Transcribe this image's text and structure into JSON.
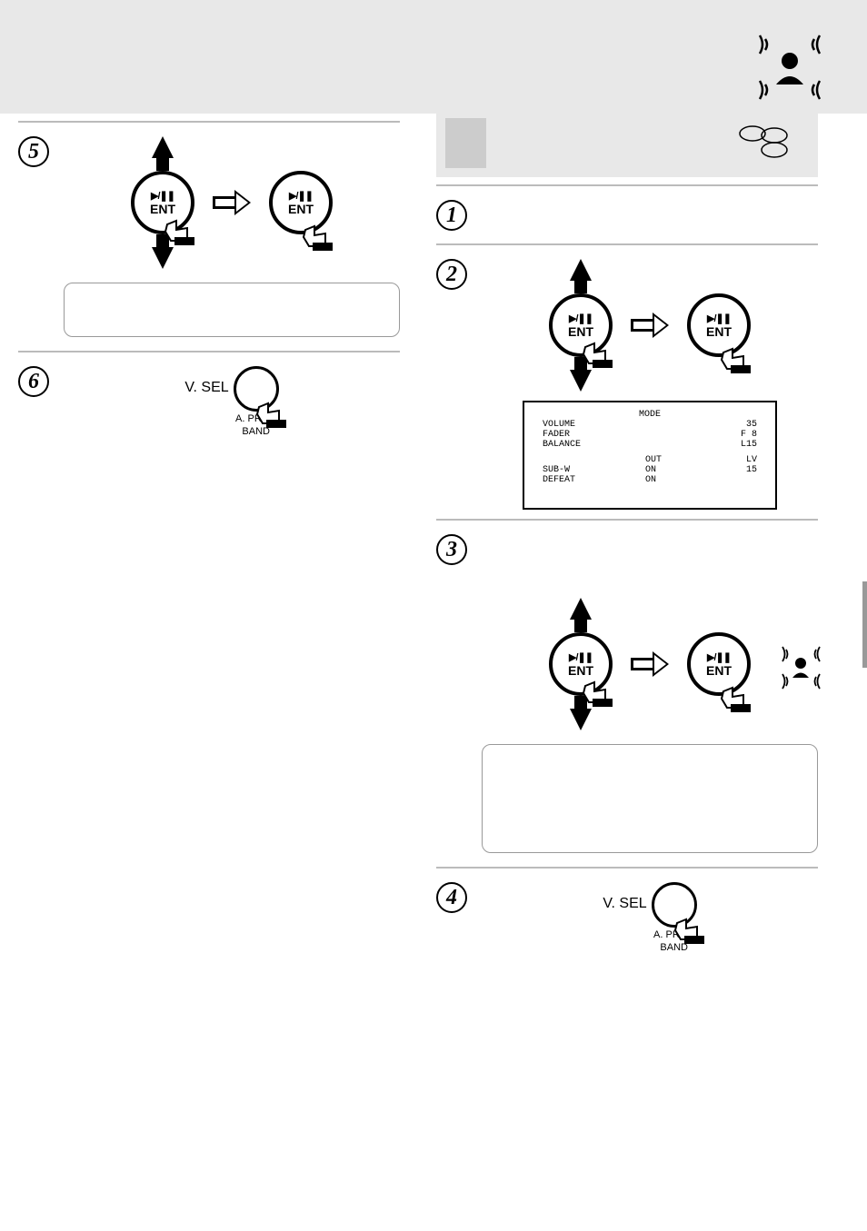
{
  "knob": {
    "label": "ENT",
    "play_symbol": "▶/❚❚"
  },
  "vsel": {
    "label": "V. SEL",
    "sub1": "A. PROC",
    "sub2": "BAND"
  },
  "screen": {
    "header": "MODE",
    "rows": [
      {
        "label": "VOLUME",
        "mid": "",
        "val": "35"
      },
      {
        "label": "FADER",
        "mid": "",
        "val": "F 8"
      },
      {
        "label": "BALANCE",
        "mid": "",
        "val": "L15"
      }
    ],
    "sub_header": {
      "c1": "",
      "c2": "OUT",
      "c3": "LV"
    },
    "sub_rows": [
      {
        "label": "SUB-W",
        "mid": "ON",
        "val": "15"
      },
      {
        "label": "DEFEAT",
        "mid": "ON",
        "val": ""
      }
    ]
  },
  "steps": {
    "s1": "1",
    "s2": "2",
    "s3": "3",
    "s4": "4",
    "s5": "5",
    "s6": "6"
  }
}
